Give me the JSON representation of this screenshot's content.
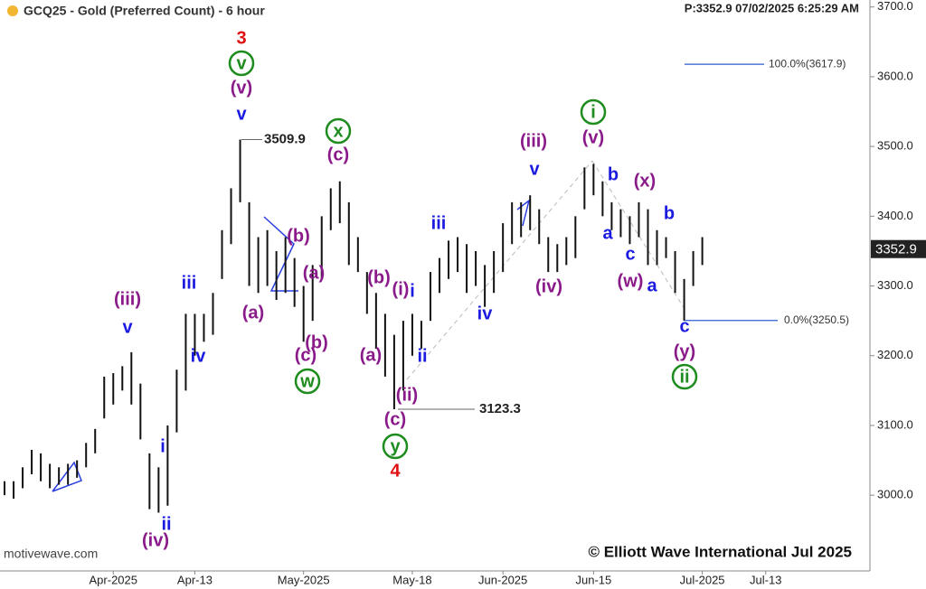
{
  "chart_data": {
    "type": "ohlc",
    "title": "GCQ25 - Gold (Preferred Count) - 6 hour",
    "status": "P:3352.9  07/02/2025 6:25:29 AM",
    "watermark": "motivewave.com",
    "copyright": "© Elliott Wave International Jul 2025",
    "ylim": [
      2894,
      3710
    ],
    "yticks": [
      {
        "value": 3000,
        "label": "3000.0"
      },
      {
        "value": 3100,
        "label": "3100.0"
      },
      {
        "value": 3200,
        "label": "3200.0"
      },
      {
        "value": 3300,
        "label": "3300.0"
      },
      {
        "value": 3400,
        "label": "3400.0"
      },
      {
        "value": 3500,
        "label": "3500.0"
      },
      {
        "value": 3600,
        "label": "3600.0"
      },
      {
        "value": 3700,
        "label": "3700.0"
      }
    ],
    "categories": [
      null,
      null,
      null,
      null,
      null,
      null,
      null,
      null,
      null,
      null,
      null,
      null,
      "Apr-2025",
      null,
      null,
      null,
      null,
      null,
      null,
      null,
      null,
      "Apr-13",
      null,
      null,
      null,
      null,
      null,
      null,
      null,
      null,
      null,
      null,
      null,
      "May-2025",
      null,
      null,
      null,
      null,
      null,
      null,
      null,
      null,
      null,
      null,
      null,
      "May-18",
      null,
      null,
      null,
      null,
      null,
      null,
      null,
      null,
      null,
      "Jun-2025",
      null,
      null,
      null,
      null,
      null,
      null,
      null,
      null,
      null,
      "Jun-15",
      null,
      null,
      null,
      null,
      null,
      null,
      null,
      null,
      null,
      null,
      null,
      "Jul-2025",
      null,
      null,
      null,
      null,
      null,
      null,
      "Jul-13",
      null,
      null,
      null,
      null,
      null,
      null,
      null,
      null,
      null,
      null,
      null
    ],
    "high": [
      3020,
      3020,
      3040,
      3065,
      3060,
      3045,
      3040,
      3045,
      3050,
      3075,
      3095,
      3170,
      3175,
      3185,
      3205,
      3160,
      3060,
      3040,
      3100,
      3180,
      3260,
      3260,
      3260,
      3290,
      3380,
      3440,
      3509.9,
      3420,
      3370,
      3380,
      3350,
      3370,
      3340,
      3300,
      3330,
      3400,
      3440,
      3450,
      3420,
      3370,
      3320,
      3290,
      3260,
      3230,
      3250,
      3260,
      3250,
      3320,
      3340,
      3365,
      3370,
      3360,
      3350,
      3330,
      3350,
      3390,
      3420,
      3420,
      3430,
      3410,
      3370,
      3360,
      3370,
      3400,
      3470,
      3475,
      3450,
      3420,
      3410,
      3400,
      3420,
      3410,
      3380,
      3370,
      3350,
      3310,
      3350,
      3370,
      null,
      null,
      null,
      null,
      null,
      null,
      null,
      null,
      null,
      null,
      null,
      null,
      null,
      null,
      null,
      null,
      null,
      null
    ],
    "low": [
      3000,
      2995,
      3010,
      3030,
      3020,
      3010,
      3015,
      3015,
      3025,
      3040,
      3060,
      3110,
      3130,
      3150,
      3130,
      3080,
      2980,
      2975,
      2985,
      3090,
      3150,
      3200,
      3220,
      3230,
      3310,
      3360,
      3420,
      3300,
      3290,
      3300,
      3280,
      3290,
      3270,
      3220,
      3250,
      3310,
      3380,
      3390,
      3330,
      3320,
      3260,
      3210,
      3170,
      3123.3,
      3150,
      3200,
      3210,
      3250,
      3290,
      3310,
      3320,
      3290,
      3300,
      3270,
      3290,
      3320,
      3360,
      3370,
      3380,
      3360,
      3320,
      3320,
      3330,
      3340,
      3410,
      3430,
      3400,
      3380,
      3370,
      3360,
      3370,
      3330,
      3330,
      3340,
      3290,
      3250,
      3300,
      3330,
      null,
      null,
      null,
      null,
      null,
      null,
      null,
      null,
      null,
      null,
      null,
      null,
      null,
      null,
      null,
      null,
      null,
      null
    ],
    "bar_color": "#111111",
    "last_price": 3352.9,
    "price_callouts": [
      {
        "value": 3509.9,
        "label": "3509.9"
      },
      {
        "value": 3123.3,
        "label": "3123.3"
      }
    ],
    "fib_levels": [
      {
        "value": 3617.9,
        "label": "100.0%(3617.9)"
      },
      {
        "value": 3250.5,
        "label": "0.0%(3250.5)"
      }
    ],
    "fib_color": "#2a5fd0",
    "annotations": [
      {
        "text": "3",
        "color": "#e01010"
      },
      {
        "text": "v",
        "color": "#1e8c1e",
        "circled": true
      },
      {
        "text": "(v)",
        "color": "#8a1a8a"
      },
      {
        "text": "v",
        "color": "#1a1ae0"
      },
      {
        "text": "(iii)",
        "color": "#8a1a8a"
      },
      {
        "text": "v",
        "color": "#1a1ae0"
      },
      {
        "text": "iii",
        "color": "#1a1ae0"
      },
      {
        "text": "iv",
        "color": "#1a1ae0"
      },
      {
        "text": "i",
        "color": "#1a1ae0"
      },
      {
        "text": "ii",
        "color": "#1a1ae0"
      },
      {
        "text": "(iv)",
        "color": "#8a1a8a"
      },
      {
        "text": "(a)",
        "color": "#8a1a8a"
      },
      {
        "text": "(b)",
        "color": "#8a1a8a"
      },
      {
        "text": "(a)",
        "color": "#8a1a8a"
      },
      {
        "text": "(b)",
        "color": "#8a1a8a"
      },
      {
        "text": "(c)",
        "color": "#8a1a8a"
      },
      {
        "text": "w",
        "color": "#1e8c1e",
        "circled": true
      },
      {
        "text": "x",
        "color": "#1e8c1e",
        "circled": true
      },
      {
        "text": "(c)",
        "color": "#8a1a8a"
      },
      {
        "text": "(b)",
        "color": "#8a1a8a"
      },
      {
        "text": "(a)",
        "color": "#8a1a8a"
      },
      {
        "text": "(i)",
        "color": "#8a1a8a"
      },
      {
        "text": "i",
        "color": "#1a1ae0"
      },
      {
        "text": "ii",
        "color": "#1a1ae0"
      },
      {
        "text": "(ii)",
        "color": "#8a1a8a"
      },
      {
        "text": "(c)",
        "color": "#8a1a8a"
      },
      {
        "text": "y",
        "color": "#1e8c1e",
        "circled": true
      },
      {
        "text": "4",
        "color": "#e01010"
      },
      {
        "text": "iii",
        "color": "#1a1ae0"
      },
      {
        "text": "iv",
        "color": "#1a1ae0"
      },
      {
        "text": "(iii)",
        "color": "#8a1a8a"
      },
      {
        "text": "v",
        "color": "#1a1ae0"
      },
      {
        "text": "(iv)",
        "color": "#8a1a8a"
      },
      {
        "text": "i",
        "color": "#1e8c1e",
        "circled": true
      },
      {
        "text": "(v)",
        "color": "#8a1a8a"
      },
      {
        "text": "b",
        "color": "#1a1ae0"
      },
      {
        "text": "a",
        "color": "#1a1ae0"
      },
      {
        "text": "c",
        "color": "#1a1ae0"
      },
      {
        "text": "(x)",
        "color": "#8a1a8a"
      },
      {
        "text": "(w)",
        "color": "#8a1a8a"
      },
      {
        "text": "a",
        "color": "#1a1ae0"
      },
      {
        "text": "b",
        "color": "#1a1ae0"
      },
      {
        "text": "c",
        "color": "#1a1ae0"
      },
      {
        "text": "(y)",
        "color": "#8a1a8a"
      },
      {
        "text": "ii",
        "color": "#1e8c1e",
        "circled": true
      }
    ]
  }
}
